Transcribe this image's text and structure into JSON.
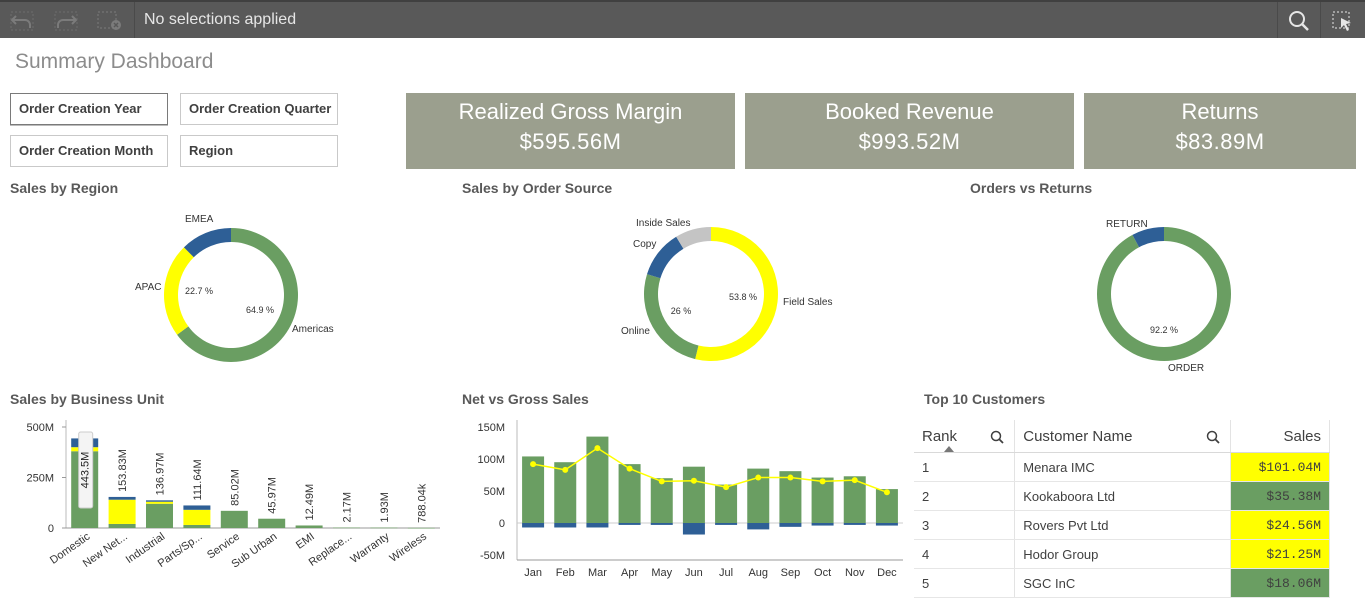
{
  "toolbar": {
    "selection_text": "No selections applied",
    "icons": [
      "back-step-icon",
      "forward-step-icon",
      "clear-selections-icon",
      "search-icon",
      "smart-select-icon"
    ]
  },
  "page": {
    "title": "Summary Dashboard"
  },
  "filters": [
    {
      "label": "Order Creation Year"
    },
    {
      "label": "Order Creation Quarter"
    },
    {
      "label": "Order Creation Month"
    },
    {
      "label": "Region"
    }
  ],
  "kpis": [
    {
      "label": "Realized Gross Margin",
      "value": "$595.56M"
    },
    {
      "label": "Booked Revenue",
      "value": "$993.52M"
    },
    {
      "label": "Returns",
      "value": "$83.89M"
    }
  ],
  "sections": {
    "sales_by_region": "Sales by Region",
    "sales_by_order_source": "Sales by Order Source",
    "orders_vs_returns": "Orders vs Returns",
    "sales_by_business_unit": "Sales by Business Unit",
    "net_vs_gross": "Net vs Gross Sales",
    "top10": "Top 10 Customers"
  },
  "colors": {
    "green": "#6a9e62",
    "yellow": "#ffff00",
    "blue": "#2e5f96",
    "gray": "#c4c4c4",
    "kpi_bg": "#9b9f8e",
    "toolbar": "#595959"
  },
  "chart_data": [
    {
      "type": "pie",
      "title": "Sales by Region",
      "slices": [
        {
          "label": "Americas",
          "value": 64.9,
          "display": "64.9 %",
          "color": "#6a9e62"
        },
        {
          "label": "APAC",
          "value": 22.7,
          "display": "22.7 %",
          "color": "#ffff00"
        },
        {
          "label": "EMEA",
          "value": 12.4,
          "color": "#2e5f96"
        }
      ]
    },
    {
      "type": "pie",
      "title": "Sales by Order Source",
      "slices": [
        {
          "label": "Field Sales",
          "value": 53.8,
          "display": "53.8 %",
          "color": "#ffff00"
        },
        {
          "label": "Online",
          "value": 26,
          "display": "26 %",
          "color": "#6a9e62"
        },
        {
          "label": "Copy",
          "value": 11.5,
          "color": "#2e5f96"
        },
        {
          "label": "Inside Sales",
          "value": 8.7,
          "color": "#c4c4c4"
        }
      ]
    },
    {
      "type": "pie",
      "title": "Orders vs Returns",
      "slices": [
        {
          "label": "ORDER",
          "value": 92.2,
          "display": "92.2 %",
          "color": "#6a9e62"
        },
        {
          "label": "RETURN",
          "value": 7.8,
          "color": "#2e5f96"
        }
      ]
    },
    {
      "type": "bar",
      "title": "Sales by Business Unit",
      "categories": [
        "Domestic",
        "New Net...",
        "Industrial",
        "Parts/Sp...",
        "Service",
        "Sub Urban",
        "EMI",
        "Replace...",
        "Warranty",
        "Wireless"
      ],
      "values": [
        443.5,
        153.83,
        136.97,
        111.64,
        85.02,
        45.97,
        12.49,
        2.17,
        1.93,
        0.78804
      ],
      "value_labels": [
        "443.5M",
        "153.83M",
        "136.97M",
        "111.64M",
        "85.02M",
        "45.97M",
        "12.49M",
        "2.17M",
        "1.93M",
        "788.04k"
      ],
      "stack": {
        "green": [
          380,
          20,
          120,
          15,
          85.02,
          45.97,
          12.49,
          2.17,
          1.93,
          0.78804
        ],
        "yellow": [
          20,
          120,
          10,
          75,
          0,
          0,
          0,
          0,
          0,
          0
        ],
        "blue": [
          43.5,
          13.83,
          6.97,
          21.64,
          0,
          0,
          0,
          0,
          0,
          0
        ]
      },
      "yticks": [
        "0",
        "250M",
        "500M"
      ],
      "ylim": [
        0,
        500
      ]
    },
    {
      "type": "bar",
      "title": "Net vs Gross Sales",
      "categories": [
        "Jan",
        "Feb",
        "Mar",
        "Apr",
        "May",
        "Jun",
        "Jul",
        "Aug",
        "Sep",
        "Oct",
        "Nov",
        "Dec"
      ],
      "series": [
        {
          "values": [
            104,
            95,
            135,
            92,
            70,
            88,
            60,
            85,
            81,
            71,
            73,
            53
          ],
          "color": "#6a9e62"
        },
        {
          "values": [
            -7,
            -7,
            -7,
            -3,
            -3,
            -18,
            -3,
            -10,
            -6,
            -4,
            -3,
            -4
          ],
          "color": "#2e5f96"
        },
        {
          "values": [
            92,
            83,
            117,
            85,
            65,
            66,
            56,
            71,
            71,
            65,
            67,
            48
          ],
          "color": "#ffff00",
          "kind": "line"
        }
      ],
      "yticks": [
        "-50M",
        "0",
        "50M",
        "100M",
        "150M"
      ],
      "ylim": [
        -50,
        150
      ]
    }
  ],
  "table": {
    "headers": {
      "rank": "Rank",
      "customer": "Customer Name",
      "sales": "Sales"
    },
    "rows": [
      {
        "rank": "1",
        "customer": "Menara IMC",
        "sales": "$101.04M",
        "color": "#ffff00"
      },
      {
        "rank": "2",
        "customer": "Kookaboora Ltd",
        "sales": "$35.38M",
        "color": "#6a9e62"
      },
      {
        "rank": "3",
        "customer": "Rovers Pvt Ltd",
        "sales": "$24.56M",
        "color": "#ffff00"
      },
      {
        "rank": "4",
        "customer": "Hodor Group",
        "sales": "$21.25M",
        "color": "#ffff00"
      },
      {
        "rank": "5",
        "customer": "SGC InC",
        "sales": "$18.06M",
        "color": "#6a9e62"
      }
    ]
  }
}
